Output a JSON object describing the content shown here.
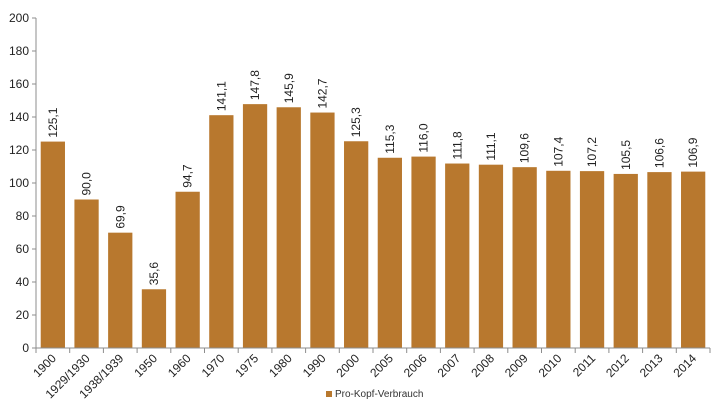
{
  "chart_data": {
    "type": "bar",
    "title": "",
    "xlabel": "",
    "ylabel": "",
    "ylim": [
      0,
      200
    ],
    "yticks": [
      0,
      20,
      40,
      60,
      80,
      100,
      120,
      140,
      160,
      180,
      200
    ],
    "grid": false,
    "legend_position": "bottom",
    "categories": [
      "1900",
      "1929/1930",
      "1938/1939",
      "1950",
      "1960",
      "1970",
      "1975",
      "1980",
      "1990",
      "2000",
      "2005",
      "2006",
      "2007",
      "2008",
      "2009",
      "2010",
      "2011",
      "2012",
      "2013",
      "2014"
    ],
    "series": [
      {
        "name": "Pro-Kopf-Verbrauch",
        "color": "#b8782e",
        "values": [
          125.1,
          90.0,
          69.9,
          35.6,
          94.7,
          141.1,
          147.8,
          145.9,
          142.7,
          125.3,
          115.3,
          116.0,
          111.8,
          111.1,
          109.6,
          107.4,
          107.2,
          105.5,
          106.6,
          106.9
        ],
        "labels": [
          "125,1",
          "90,0",
          "69,9",
          "35,6",
          "94,7",
          "141,1",
          "147,8",
          "145,9",
          "142,7",
          "125,3",
          "115,3",
          "116,0",
          "111,8",
          "111,1",
          "109,6",
          "107,4",
          "107,2",
          "105,5",
          "106,6",
          "106,9"
        ]
      }
    ]
  }
}
